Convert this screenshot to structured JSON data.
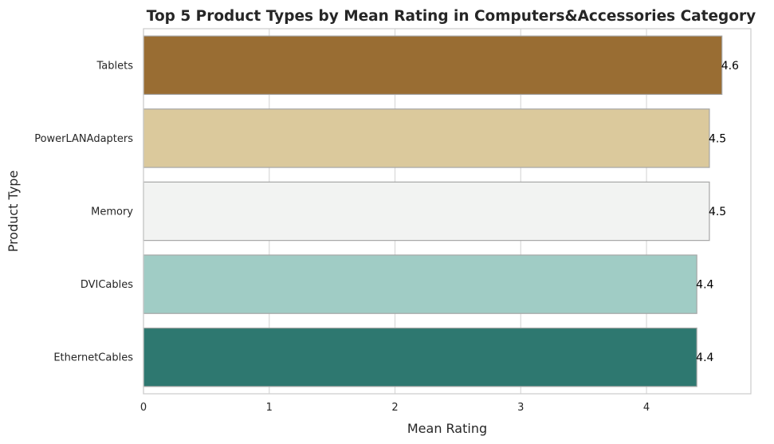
{
  "chart_data": {
    "type": "bar",
    "orientation": "horizontal",
    "title": "Top 5 Product Types by Mean Rating in Computers&Accessories Category",
    "xlabel": "Mean Rating",
    "ylabel": "Product Type",
    "categories": [
      "Tablets",
      "PowerLANAdapters",
      "Memory",
      "DVICables",
      "EthernetCables"
    ],
    "values": [
      4.6,
      4.5,
      4.5,
      4.4,
      4.4
    ],
    "data_labels": [
      "4.6",
      "4.5",
      "4.5",
      "4.4",
      "4.4"
    ],
    "bar_colors": [
      "#996d33",
      "#dbc99c",
      "#f2f3f2",
      "#a0ccc5",
      "#2e7870"
    ],
    "xlim": [
      0,
      4.83
    ],
    "xticks": [
      0,
      1,
      2,
      3,
      4
    ],
    "xtick_labels": [
      "0",
      "1",
      "2",
      "3",
      "4"
    ],
    "grid": true,
    "legend": "none"
  }
}
